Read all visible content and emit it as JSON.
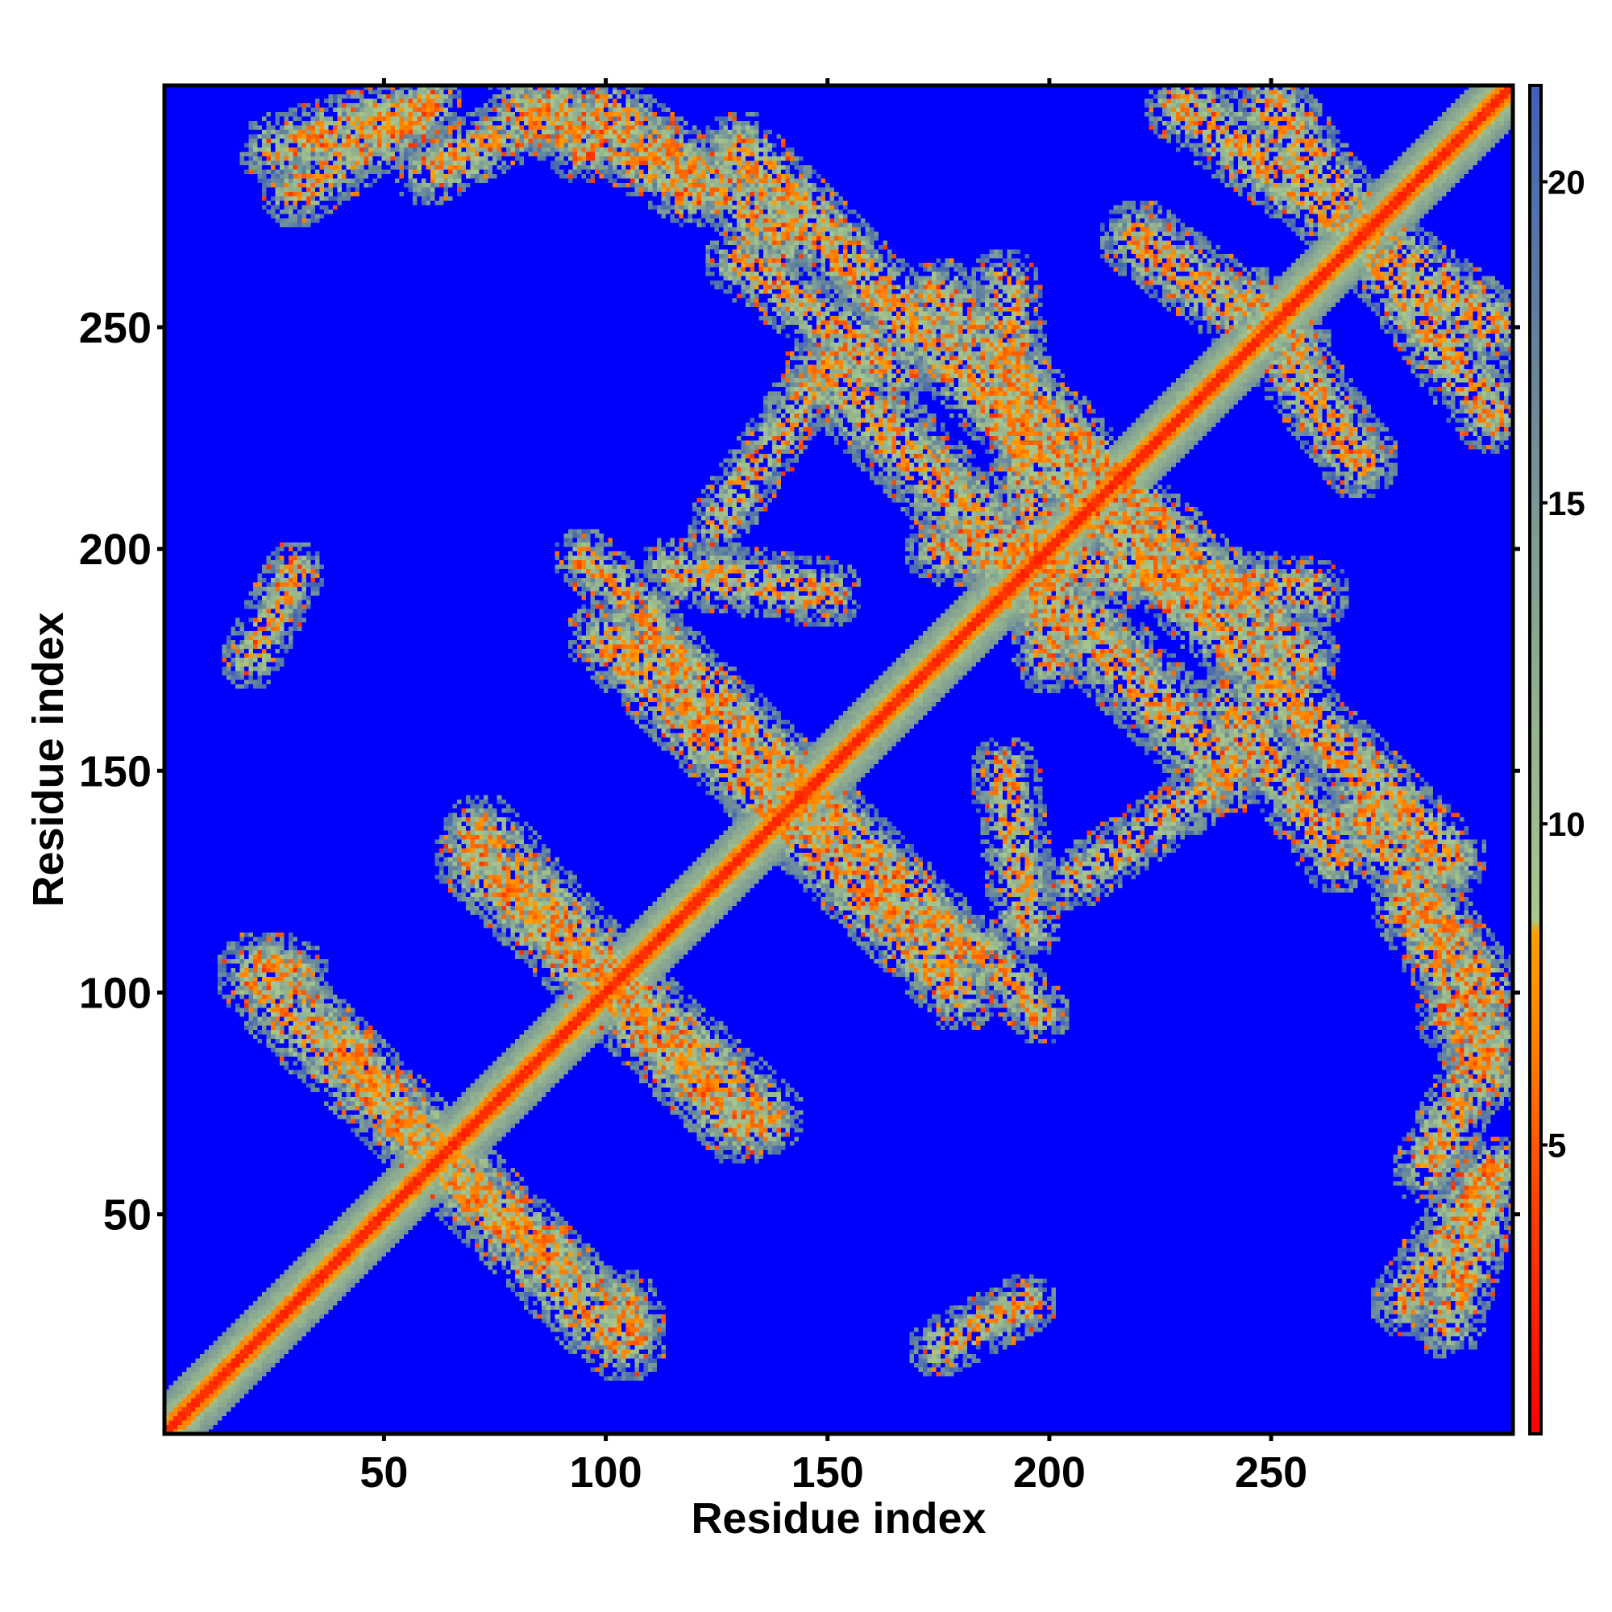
{
  "chart_data": {
    "type": "heatmap",
    "title": "",
    "xlabel": "Residue index",
    "ylabel": "Residue index",
    "xlim": [
      0.5,
      304.5
    ],
    "ylim": [
      0.5,
      304.5
    ],
    "x_ticks": [
      50,
      100,
      150,
      200,
      250
    ],
    "y_ticks": [
      50,
      100,
      150,
      200,
      250
    ],
    "colorbar": {
      "ticks": [
        5,
        10,
        15,
        20
      ],
      "range": [
        0.5,
        21.5
      ],
      "stops": [
        {
          "value": 0.5,
          "color": "#ff0000"
        },
        {
          "value": 4.0,
          "color": "#ff4000"
        },
        {
          "value": 6.5,
          "color": "#ff8000"
        },
        {
          "value": 8.3,
          "color": "#ffa000"
        },
        {
          "value": 8.5,
          "color": "#a8c88c"
        },
        {
          "value": 13.0,
          "color": "#8aa890"
        },
        {
          "value": 18.0,
          "color": "#5f7fa0"
        },
        {
          "value": 21.5,
          "color": "#3f62b8"
        }
      ]
    },
    "background_value": 22,
    "background_color": "#0000ff",
    "bands": [
      {
        "center": [
          0,
          0
        ],
        "direction": "parallel",
        "along": [
          1,
          304
        ],
        "label": "main diagonal (self-contacts)"
      },
      {
        "center": [
          23,
          104
        ],
        "end": [
          100,
          25
        ],
        "direction": "antiparallel",
        "label": "hairpin 1"
      },
      {
        "center": [
          70,
          130
        ],
        "end": [
          115,
          85
        ],
        "direction": "antiparallel",
        "label": "hairpin 2"
      },
      {
        "center": [
          110,
          165
        ],
        "end": [
          180,
          100
        ],
        "direction": "antiparallel",
        "label": "hairpin 3"
      },
      {
        "center": [
          150,
          125
        ],
        "end": [
          180,
          100
        ],
        "direction": "antiparallel",
        "label": "hairpin 4"
      },
      {
        "center": [
          150,
          240
        ],
        "end": [
          200,
          190
        ],
        "direction": "antiparallel",
        "label": "hairpin 5"
      },
      {
        "center": [
          195,
          225
        ],
        "end": [
          285,
          135
        ],
        "direction": "antiparallel",
        "label": "hairpin 6"
      }
    ]
  }
}
